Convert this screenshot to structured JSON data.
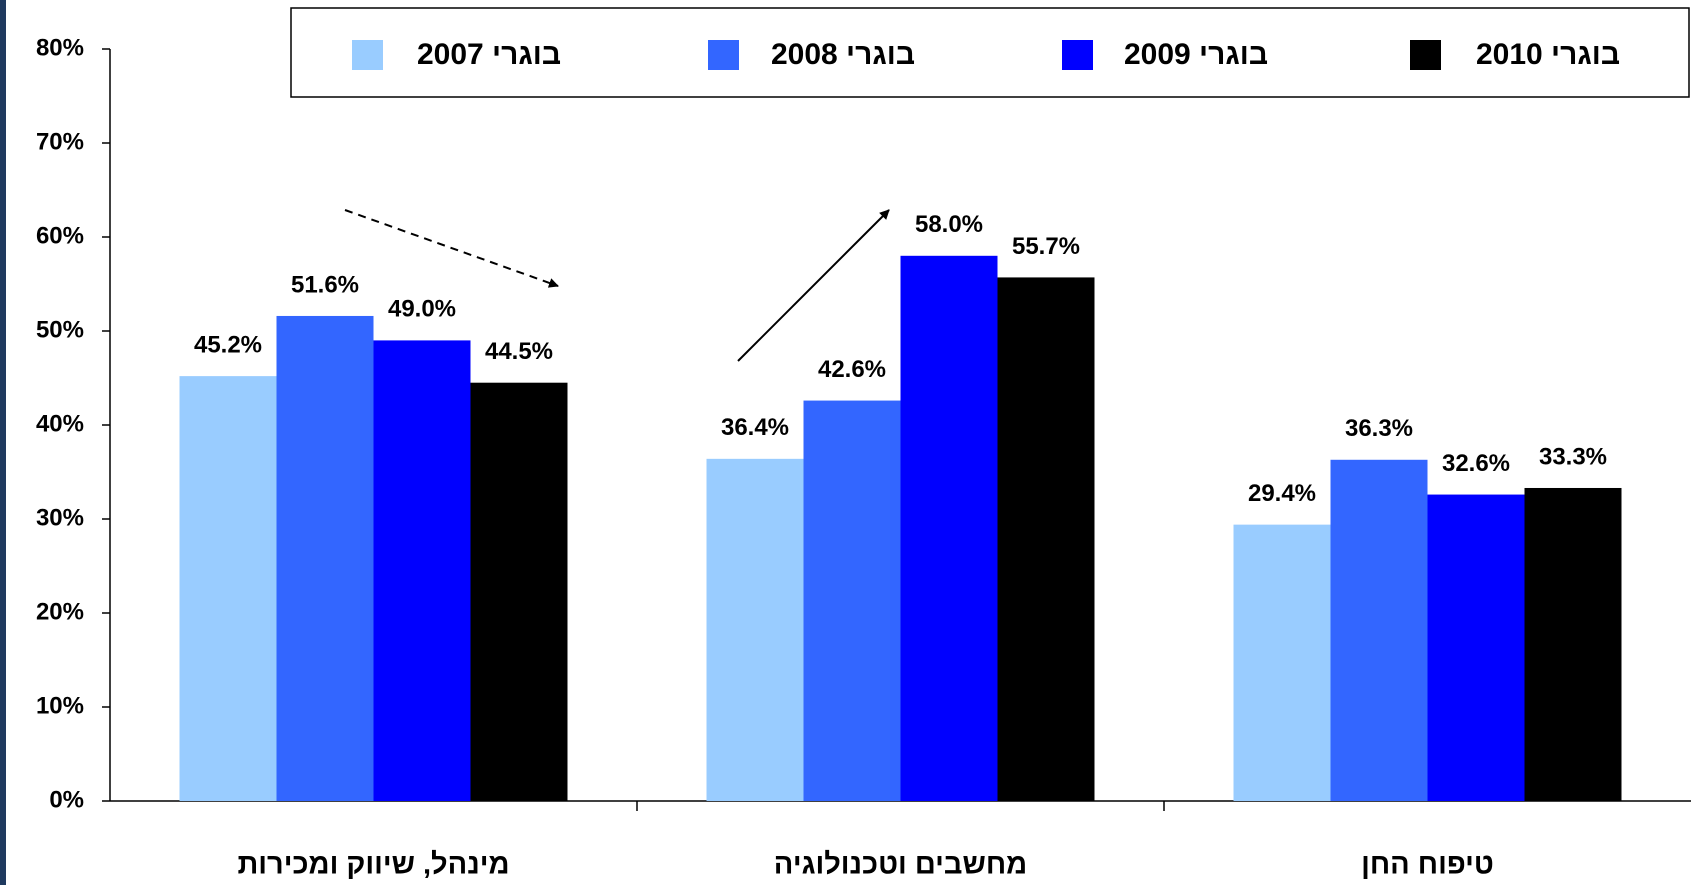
{
  "chart_data": {
    "type": "bar",
    "categories": [
      "מינהל, שיווק ומכירות",
      "מחשבים וטכנולוגיה",
      "טיפוח החן"
    ],
    "series": [
      {
        "name": "בוגרי 2007",
        "color": "#99ccff",
        "values": [
          45.2,
          36.4,
          29.4
        ],
        "value_labels": [
          "45.2%",
          "36.4%",
          "29.4%"
        ]
      },
      {
        "name": "בוגרי 2008",
        "color": "#3366ff",
        "values": [
          51.6,
          42.6,
          36.3
        ],
        "value_labels": [
          "51.6%",
          "42.6%",
          "36.3%"
        ]
      },
      {
        "name": "בוגרי 2009",
        "color": "#0000ff",
        "values": [
          49.0,
          58.0,
          32.6
        ],
        "value_labels": [
          "49.0%",
          "58.0%",
          "32.6%"
        ]
      },
      {
        "name": "בוגרי 2010",
        "color": "#000000",
        "values": [
          44.5,
          55.7,
          33.3
        ],
        "value_labels": [
          "44.5%",
          "55.7%",
          "33.3%"
        ]
      }
    ],
    "ylim": [
      0,
      80
    ],
    "yticks": [
      {
        "value": 0,
        "label": "0%"
      },
      {
        "value": 10,
        "label": "10%"
      },
      {
        "value": 20,
        "label": "20%"
      },
      {
        "value": 30,
        "label": "30%"
      },
      {
        "value": 40,
        "label": "40%"
      },
      {
        "value": 50,
        "label": "50%"
      },
      {
        "value": 60,
        "label": "60%"
      },
      {
        "value": 70,
        "label": "70%"
      },
      {
        "value": 80,
        "label": "80%"
      }
    ],
    "legend": "top-right"
  }
}
